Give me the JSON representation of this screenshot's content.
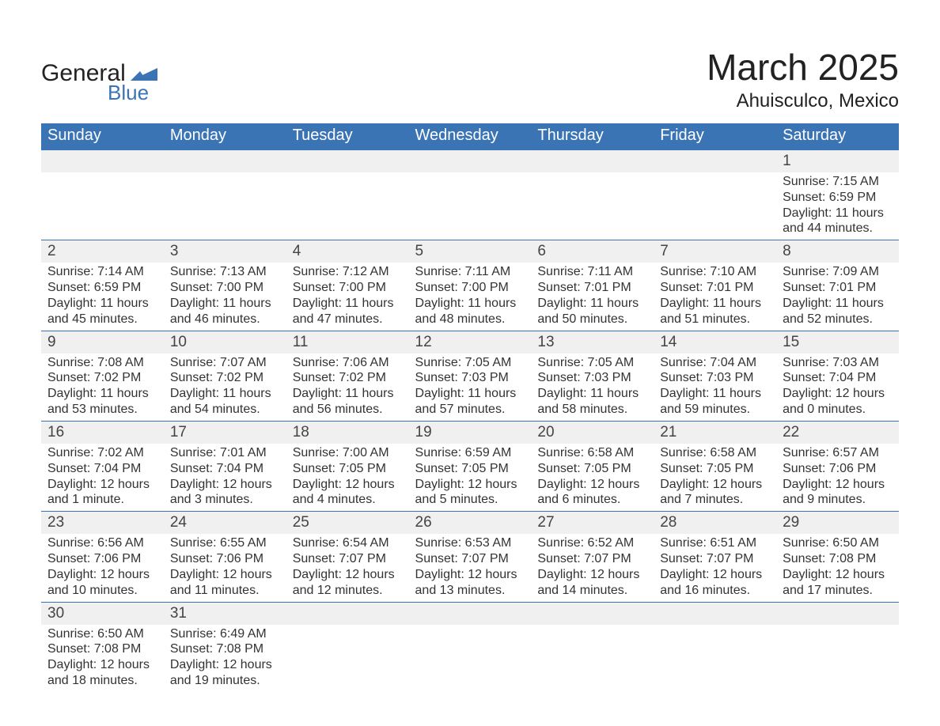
{
  "logo": {
    "line1": "General",
    "line2": "Blue",
    "icon_color": "#3b74b5"
  },
  "title": "March 2025",
  "subtitle": "Ahuisculco, Mexico",
  "colors": {
    "header_blue": "#3b74b5",
    "gray_bg": "#f0f0f0",
    "text": "#333333"
  },
  "columns": [
    "Sunday",
    "Monday",
    "Tuesday",
    "Wednesday",
    "Thursday",
    "Friday",
    "Saturday"
  ],
  "weeks": [
    [
      {
        "empty": true
      },
      {
        "empty": true
      },
      {
        "empty": true
      },
      {
        "empty": true
      },
      {
        "empty": true
      },
      {
        "empty": true
      },
      {
        "n": "1",
        "sunrise": "Sunrise: 7:15 AM",
        "sunset": "Sunset: 6:59 PM",
        "day1": "Daylight: 11 hours",
        "day2": "and 44 minutes."
      }
    ],
    [
      {
        "n": "2",
        "sunrise": "Sunrise: 7:14 AM",
        "sunset": "Sunset: 6:59 PM",
        "day1": "Daylight: 11 hours",
        "day2": "and 45 minutes."
      },
      {
        "n": "3",
        "sunrise": "Sunrise: 7:13 AM",
        "sunset": "Sunset: 7:00 PM",
        "day1": "Daylight: 11 hours",
        "day2": "and 46 minutes."
      },
      {
        "n": "4",
        "sunrise": "Sunrise: 7:12 AM",
        "sunset": "Sunset: 7:00 PM",
        "day1": "Daylight: 11 hours",
        "day2": "and 47 minutes."
      },
      {
        "n": "5",
        "sunrise": "Sunrise: 7:11 AM",
        "sunset": "Sunset: 7:00 PM",
        "day1": "Daylight: 11 hours",
        "day2": "and 48 minutes."
      },
      {
        "n": "6",
        "sunrise": "Sunrise: 7:11 AM",
        "sunset": "Sunset: 7:01 PM",
        "day1": "Daylight: 11 hours",
        "day2": "and 50 minutes."
      },
      {
        "n": "7",
        "sunrise": "Sunrise: 7:10 AM",
        "sunset": "Sunset: 7:01 PM",
        "day1": "Daylight: 11 hours",
        "day2": "and 51 minutes."
      },
      {
        "n": "8",
        "sunrise": "Sunrise: 7:09 AM",
        "sunset": "Sunset: 7:01 PM",
        "day1": "Daylight: 11 hours",
        "day2": "and 52 minutes."
      }
    ],
    [
      {
        "n": "9",
        "sunrise": "Sunrise: 7:08 AM",
        "sunset": "Sunset: 7:02 PM",
        "day1": "Daylight: 11 hours",
        "day2": "and 53 minutes."
      },
      {
        "n": "10",
        "sunrise": "Sunrise: 7:07 AM",
        "sunset": "Sunset: 7:02 PM",
        "day1": "Daylight: 11 hours",
        "day2": "and 54 minutes."
      },
      {
        "n": "11",
        "sunrise": "Sunrise: 7:06 AM",
        "sunset": "Sunset: 7:02 PM",
        "day1": "Daylight: 11 hours",
        "day2": "and 56 minutes."
      },
      {
        "n": "12",
        "sunrise": "Sunrise: 7:05 AM",
        "sunset": "Sunset: 7:03 PM",
        "day1": "Daylight: 11 hours",
        "day2": "and 57 minutes."
      },
      {
        "n": "13",
        "sunrise": "Sunrise: 7:05 AM",
        "sunset": "Sunset: 7:03 PM",
        "day1": "Daylight: 11 hours",
        "day2": "and 58 minutes."
      },
      {
        "n": "14",
        "sunrise": "Sunrise: 7:04 AM",
        "sunset": "Sunset: 7:03 PM",
        "day1": "Daylight: 11 hours",
        "day2": "and 59 minutes."
      },
      {
        "n": "15",
        "sunrise": "Sunrise: 7:03 AM",
        "sunset": "Sunset: 7:04 PM",
        "day1": "Daylight: 12 hours",
        "day2": "and 0 minutes."
      }
    ],
    [
      {
        "n": "16",
        "sunrise": "Sunrise: 7:02 AM",
        "sunset": "Sunset: 7:04 PM",
        "day1": "Daylight: 12 hours",
        "day2": "and 1 minute."
      },
      {
        "n": "17",
        "sunrise": "Sunrise: 7:01 AM",
        "sunset": "Sunset: 7:04 PM",
        "day1": "Daylight: 12 hours",
        "day2": "and 3 minutes."
      },
      {
        "n": "18",
        "sunrise": "Sunrise: 7:00 AM",
        "sunset": "Sunset: 7:05 PM",
        "day1": "Daylight: 12 hours",
        "day2": "and 4 minutes."
      },
      {
        "n": "19",
        "sunrise": "Sunrise: 6:59 AM",
        "sunset": "Sunset: 7:05 PM",
        "day1": "Daylight: 12 hours",
        "day2": "and 5 minutes."
      },
      {
        "n": "20",
        "sunrise": "Sunrise: 6:58 AM",
        "sunset": "Sunset: 7:05 PM",
        "day1": "Daylight: 12 hours",
        "day2": "and 6 minutes."
      },
      {
        "n": "21",
        "sunrise": "Sunrise: 6:58 AM",
        "sunset": "Sunset: 7:05 PM",
        "day1": "Daylight: 12 hours",
        "day2": "and 7 minutes."
      },
      {
        "n": "22",
        "sunrise": "Sunrise: 6:57 AM",
        "sunset": "Sunset: 7:06 PM",
        "day1": "Daylight: 12 hours",
        "day2": "and 9 minutes."
      }
    ],
    [
      {
        "n": "23",
        "sunrise": "Sunrise: 6:56 AM",
        "sunset": "Sunset: 7:06 PM",
        "day1": "Daylight: 12 hours",
        "day2": "and 10 minutes."
      },
      {
        "n": "24",
        "sunrise": "Sunrise: 6:55 AM",
        "sunset": "Sunset: 7:06 PM",
        "day1": "Daylight: 12 hours",
        "day2": "and 11 minutes."
      },
      {
        "n": "25",
        "sunrise": "Sunrise: 6:54 AM",
        "sunset": "Sunset: 7:07 PM",
        "day1": "Daylight: 12 hours",
        "day2": "and 12 minutes."
      },
      {
        "n": "26",
        "sunrise": "Sunrise: 6:53 AM",
        "sunset": "Sunset: 7:07 PM",
        "day1": "Daylight: 12 hours",
        "day2": "and 13 minutes."
      },
      {
        "n": "27",
        "sunrise": "Sunrise: 6:52 AM",
        "sunset": "Sunset: 7:07 PM",
        "day1": "Daylight: 12 hours",
        "day2": "and 14 minutes."
      },
      {
        "n": "28",
        "sunrise": "Sunrise: 6:51 AM",
        "sunset": "Sunset: 7:07 PM",
        "day1": "Daylight: 12 hours",
        "day2": "and 16 minutes."
      },
      {
        "n": "29",
        "sunrise": "Sunrise: 6:50 AM",
        "sunset": "Sunset: 7:08 PM",
        "day1": "Daylight: 12 hours",
        "day2": "and 17 minutes."
      }
    ],
    [
      {
        "n": "30",
        "sunrise": "Sunrise: 6:50 AM",
        "sunset": "Sunset: 7:08 PM",
        "day1": "Daylight: 12 hours",
        "day2": "and 18 minutes."
      },
      {
        "n": "31",
        "sunrise": "Sunrise: 6:49 AM",
        "sunset": "Sunset: 7:08 PM",
        "day1": "Daylight: 12 hours",
        "day2": "and 19 minutes."
      },
      {
        "empty": true
      },
      {
        "empty": true
      },
      {
        "empty": true
      },
      {
        "empty": true
      },
      {
        "empty": true
      }
    ]
  ]
}
